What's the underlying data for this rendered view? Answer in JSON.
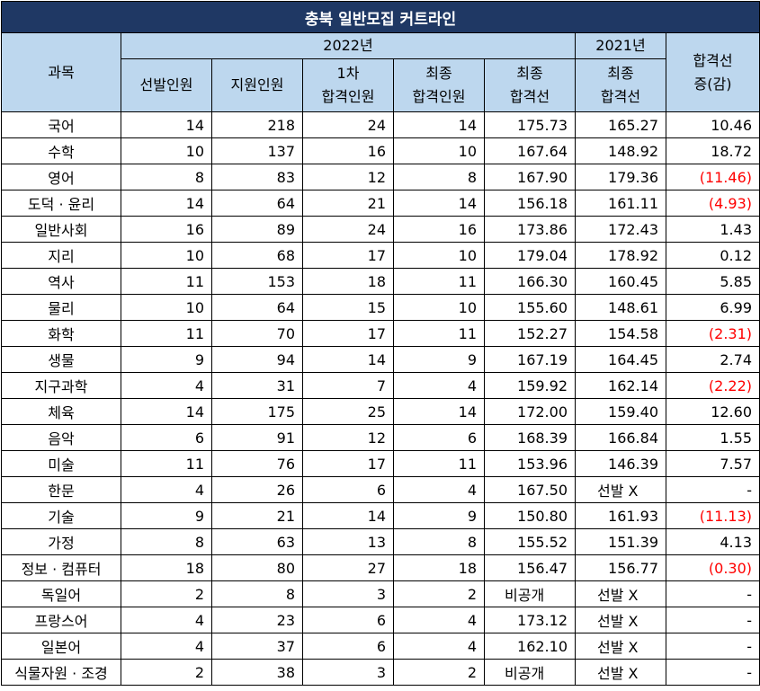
{
  "title": "충북 일반모집 커트라인",
  "headers": {
    "subject": "과목",
    "year_2022": "2022년",
    "year_2021": "2021년",
    "selected": "선발인원",
    "applicants": "지원인원",
    "first_pass_l1": "1차",
    "first_pass_l2": "합격인원",
    "final_pass_l1": "최종",
    "final_pass_l2": "합격인원",
    "final_cut_l1": "최종",
    "final_cut_l2": "합격선",
    "cut21_l1": "최종",
    "cut21_l2": "합격선",
    "change_l1": "합격선",
    "change_l2": "증(감)"
  },
  "rows": [
    {
      "subject": "국어",
      "selected": "14",
      "applicants": "218",
      "first": "24",
      "final": "14",
      "cut22": "175.73",
      "cut21": "165.27",
      "change": "10.46",
      "neg": false
    },
    {
      "subject": "수학",
      "selected": "10",
      "applicants": "137",
      "first": "16",
      "final": "10",
      "cut22": "167.64",
      "cut21": "148.92",
      "change": "18.72",
      "neg": false
    },
    {
      "subject": "영어",
      "selected": "8",
      "applicants": "83",
      "first": "12",
      "final": "8",
      "cut22": "167.90",
      "cut21": "179.36",
      "change": "(11.46)",
      "neg": true
    },
    {
      "subject": "도덕 · 윤리",
      "selected": "14",
      "applicants": "64",
      "first": "21",
      "final": "14",
      "cut22": "156.18",
      "cut21": "161.11",
      "change": "(4.93)",
      "neg": true
    },
    {
      "subject": "일반사회",
      "selected": "16",
      "applicants": "89",
      "first": "24",
      "final": "16",
      "cut22": "173.86",
      "cut21": "172.43",
      "change": "1.43",
      "neg": false
    },
    {
      "subject": "지리",
      "selected": "10",
      "applicants": "68",
      "first": "17",
      "final": "10",
      "cut22": "179.04",
      "cut21": "178.92",
      "change": "0.12",
      "neg": false
    },
    {
      "subject": "역사",
      "selected": "11",
      "applicants": "153",
      "first": "18",
      "final": "11",
      "cut22": "166.30",
      "cut21": "160.45",
      "change": "5.85",
      "neg": false
    },
    {
      "subject": "물리",
      "selected": "10",
      "applicants": "64",
      "first": "15",
      "final": "10",
      "cut22": "155.60",
      "cut21": "148.61",
      "change": "6.99",
      "neg": false
    },
    {
      "subject": "화학",
      "selected": "11",
      "applicants": "70",
      "first": "17",
      "final": "11",
      "cut22": "152.27",
      "cut21": "154.58",
      "change": "(2.31)",
      "neg": true
    },
    {
      "subject": "생물",
      "selected": "9",
      "applicants": "94",
      "first": "14",
      "final": "9",
      "cut22": "167.19",
      "cut21": "164.45",
      "change": "2.74",
      "neg": false
    },
    {
      "subject": "지구과학",
      "selected": "4",
      "applicants": "31",
      "first": "7",
      "final": "4",
      "cut22": "159.92",
      "cut21": "162.14",
      "change": "(2.22)",
      "neg": true
    },
    {
      "subject": "체육",
      "selected": "14",
      "applicants": "175",
      "first": "25",
      "final": "14",
      "cut22": "172.00",
      "cut21": "159.40",
      "change": "12.60",
      "neg": false
    },
    {
      "subject": "음악",
      "selected": "6",
      "applicants": "91",
      "first": "12",
      "final": "6",
      "cut22": "168.39",
      "cut21": "166.84",
      "change": "1.55",
      "neg": false
    },
    {
      "subject": "미술",
      "selected": "11",
      "applicants": "76",
      "first": "17",
      "final": "11",
      "cut22": "153.96",
      "cut21": "146.39",
      "change": "7.57",
      "neg": false
    },
    {
      "subject": "한문",
      "selected": "4",
      "applicants": "26",
      "first": "6",
      "final": "4",
      "cut22": "167.50",
      "cut21": "선발 X",
      "change": "-",
      "neg": false
    },
    {
      "subject": "기술",
      "selected": "9",
      "applicants": "21",
      "first": "14",
      "final": "9",
      "cut22": "150.80",
      "cut21": "161.93",
      "change": "(11.13)",
      "neg": true
    },
    {
      "subject": "가정",
      "selected": "8",
      "applicants": "63",
      "first": "13",
      "final": "8",
      "cut22": "155.52",
      "cut21": "151.39",
      "change": "4.13",
      "neg": false
    },
    {
      "subject": "정보 · 컴퓨터",
      "selected": "18",
      "applicants": "80",
      "first": "27",
      "final": "18",
      "cut22": "156.47",
      "cut21": "156.77",
      "change": "(0.30)",
      "neg": true
    },
    {
      "subject": "독일어",
      "selected": "2",
      "applicants": "8",
      "first": "3",
      "final": "2",
      "cut22": "비공개",
      "cut21": "선발 X",
      "change": "-",
      "neg": false
    },
    {
      "subject": "프랑스어",
      "selected": "4",
      "applicants": "23",
      "first": "6",
      "final": "4",
      "cut22": "173.12",
      "cut21": "선발 X",
      "change": "-",
      "neg": false
    },
    {
      "subject": "일본어",
      "selected": "4",
      "applicants": "37",
      "first": "6",
      "final": "4",
      "cut22": "162.10",
      "cut21": "선발 X",
      "change": "-",
      "neg": false
    },
    {
      "subject": "식물자원 · 조경",
      "selected": "2",
      "applicants": "38",
      "first": "3",
      "final": "2",
      "cut22": "비공개",
      "cut21": "선발 X",
      "change": "-",
      "neg": false
    }
  ]
}
